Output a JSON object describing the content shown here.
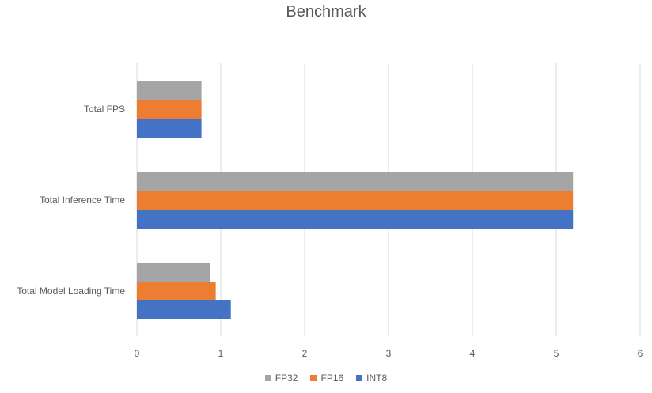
{
  "chart_data": {
    "type": "bar",
    "orientation": "horizontal",
    "title": "Benchmark",
    "categories": [
      "Total FPS",
      "Total Inference Time",
      "Total Model Loading Time"
    ],
    "series": [
      {
        "name": "FP32",
        "color": "#a5a5a5",
        "values": [
          0.77,
          5.2,
          0.87
        ]
      },
      {
        "name": "FP16",
        "color": "#ed7d31",
        "values": [
          0.77,
          5.2,
          0.94
        ]
      },
      {
        "name": "INT8",
        "color": "#4472c4",
        "values": [
          0.77,
          5.2,
          1.12
        ]
      }
    ],
    "xlim": [
      0,
      6
    ],
    "xticks": [
      "0",
      "1",
      "2",
      "3",
      "4",
      "5",
      "6"
    ],
    "grid": true,
    "legend_position": "bottom"
  }
}
